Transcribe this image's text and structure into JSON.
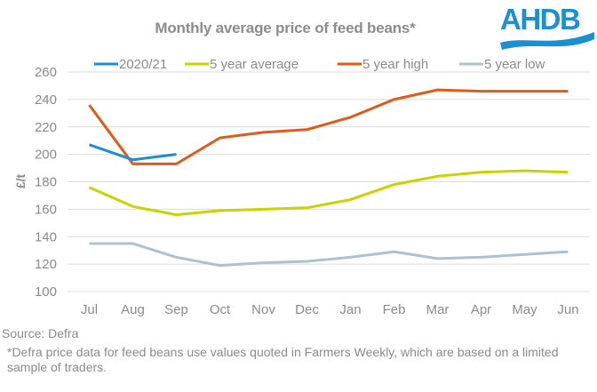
{
  "header": {
    "title": "Monthly average price of feed beans*",
    "logo_text": "AHDB",
    "logo_color": "#1b8fd2"
  },
  "footer": {
    "source": "Source: Defra",
    "note": "*Defra price data for feed beans use values quoted in Farmers Weekly, which are based on a limited sample of traders."
  },
  "chart_data": {
    "type": "line",
    "title": "Monthly average price of feed beans*",
    "xlabel": "",
    "ylabel": "£/t",
    "ylim": [
      100,
      260
    ],
    "yticks": [
      100,
      120,
      140,
      160,
      180,
      200,
      220,
      240,
      260
    ],
    "grid": true,
    "legend_position": "top",
    "categories": [
      "Jul",
      "Aug",
      "Sep",
      "Oct",
      "Nov",
      "Dec",
      "Jan",
      "Feb",
      "Mar",
      "Apr",
      "May",
      "Jun"
    ],
    "series": [
      {
        "name": "2020/21",
        "color": "#1a8fd1",
        "values": [
          207,
          196,
          200,
          null,
          null,
          null,
          null,
          null,
          null,
          null,
          null,
          null
        ]
      },
      {
        "name": "5 year average",
        "color": "#c8d400",
        "values": [
          176,
          162,
          156,
          159,
          160,
          161,
          167,
          178,
          184,
          187,
          188,
          187
        ]
      },
      {
        "name": "5 year high",
        "color": "#e05a1a",
        "values": [
          236,
          193,
          193,
          212,
          216,
          218,
          227,
          240,
          247,
          246,
          246,
          246
        ]
      },
      {
        "name": "5 year low",
        "color": "#adc2cb",
        "values": [
          135,
          135,
          125,
          119,
          121,
          122,
          125,
          129,
          124,
          125,
          127,
          129
        ]
      }
    ]
  }
}
